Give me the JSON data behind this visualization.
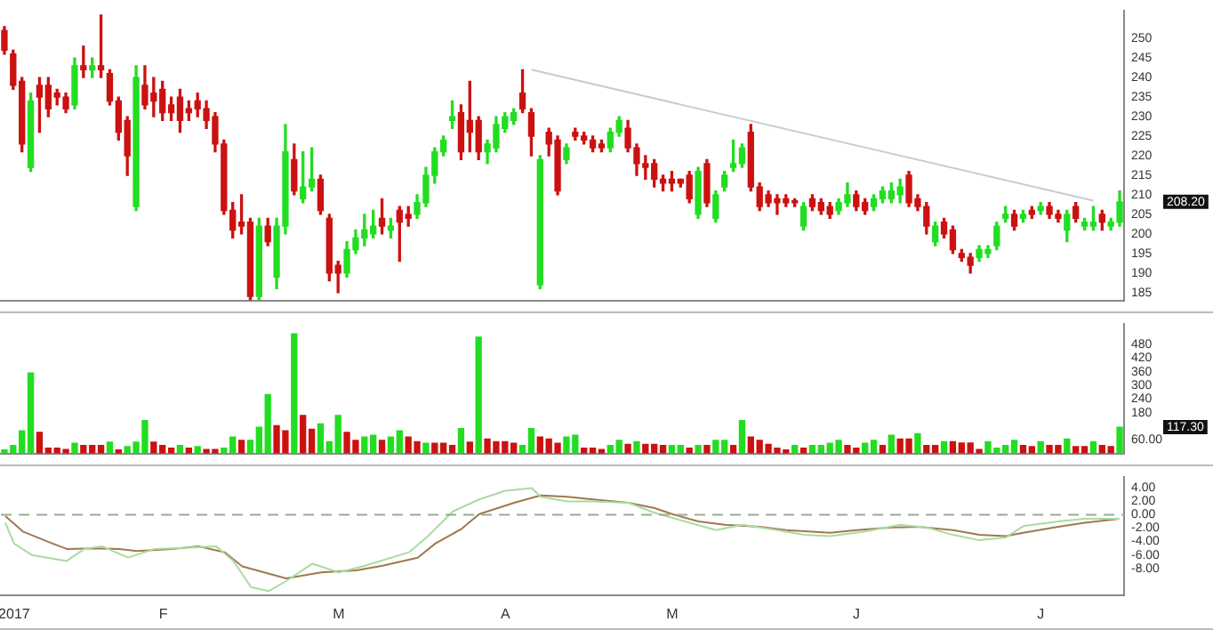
{
  "chart_data": [
    {
      "type": "candlestick",
      "categories": [
        null,
        null,
        null,
        null,
        null,
        null,
        null,
        null,
        null,
        null,
        null,
        null,
        null,
        null,
        null,
        null,
        null,
        null,
        null,
        null,
        null,
        null,
        null,
        null,
        null,
        null,
        null,
        null,
        null,
        null,
        null,
        null,
        null,
        null,
        null,
        null,
        null,
        null,
        null,
        null,
        null,
        null,
        null,
        null,
        null,
        null,
        null,
        null,
        null,
        null,
        null,
        null,
        null,
        null,
        null,
        null,
        null,
        null,
        null,
        null,
        null,
        null,
        null,
        null,
        null,
        null,
        null,
        null,
        null,
        null,
        null,
        null,
        null,
        null,
        null,
        null,
        null,
        null,
        null,
        null,
        null,
        null,
        null,
        null,
        null,
        null,
        null,
        null,
        null,
        null,
        null,
        null,
        null,
        null,
        null,
        null,
        null,
        null,
        null,
        null,
        null,
        null,
        null,
        null,
        null,
        null,
        null,
        null,
        null,
        null,
        null,
        null,
        null,
        null,
        null,
        null,
        null,
        null,
        null,
        null,
        null,
        null,
        null,
        null,
        null,
        null,
        null,
        null
      ],
      "ohlc": [
        [
          252,
          253,
          246,
          247
        ],
        [
          246,
          247,
          237,
          238
        ],
        [
          239,
          240,
          221,
          223
        ],
        [
          217,
          236,
          216,
          234
        ],
        [
          238,
          240,
          226,
          235
        ],
        [
          238,
          240,
          230,
          232
        ],
        [
          236,
          237,
          233,
          235
        ],
        [
          235,
          236,
          231,
          232
        ],
        [
          233,
          245,
          232,
          243
        ],
        [
          243,
          248,
          240,
          242
        ],
        [
          242,
          245,
          240,
          243
        ],
        [
          243,
          256,
          240,
          242
        ],
        [
          241,
          242,
          233,
          234
        ],
        [
          234,
          235,
          224,
          226
        ],
        [
          229,
          230,
          215,
          220
        ],
        [
          207,
          243,
          206,
          240
        ],
        [
          238,
          243,
          232,
          233
        ],
        [
          236,
          240,
          230,
          234
        ],
        [
          237,
          239,
          229,
          231
        ],
        [
          233,
          235,
          229,
          231
        ],
        [
          235,
          237,
          226,
          229
        ],
        [
          232,
          234,
          229,
          231
        ],
        [
          234,
          236,
          230,
          232
        ],
        [
          232,
          234,
          227,
          229
        ],
        [
          230,
          231,
          221,
          223
        ],
        [
          223,
          224,
          205,
          206
        ],
        [
          206,
          208,
          199,
          201
        ],
        [
          203,
          210,
          200,
          202
        ],
        [
          203,
          204,
          182,
          184
        ],
        [
          184,
          204,
          183,
          202
        ],
        [
          202,
          204,
          197,
          198
        ],
        [
          189,
          204,
          186,
          202
        ],
        [
          202,
          228,
          200,
          221
        ],
        [
          219,
          223,
          210,
          211
        ],
        [
          209,
          221,
          208,
          212
        ],
        [
          212,
          222,
          211,
          214
        ],
        [
          214,
          215,
          205,
          206
        ],
        [
          204,
          205,
          188,
          190
        ],
        [
          192,
          193,
          185,
          190
        ],
        [
          190,
          198,
          189,
          196
        ],
        [
          196,
          201,
          195,
          199
        ],
        [
          199,
          205,
          197,
          201
        ],
        [
          200,
          206,
          199,
          202
        ],
        [
          204,
          209,
          200,
          202
        ],
        [
          201,
          204,
          199,
          202
        ],
        [
          206,
          207,
          193,
          203
        ],
        [
          205,
          207,
          202,
          204
        ],
        [
          205,
          210,
          204,
          208
        ],
        [
          208,
          217,
          207,
          215
        ],
        [
          215,
          222,
          213,
          221
        ],
        [
          221,
          225,
          220,
          224
        ],
        [
          229,
          234,
          227,
          230
        ],
        [
          231,
          233,
          219,
          221
        ],
        [
          229,
          239,
          221,
          226
        ],
        [
          229,
          230,
          219,
          221
        ],
        [
          221,
          224,
          218,
          223
        ],
        [
          222,
          230,
          221,
          228
        ],
        [
          227,
          231,
          226,
          230
        ],
        [
          229,
          232,
          228,
          231
        ],
        [
          236,
          242,
          231,
          232
        ],
        [
          231,
          232,
          220,
          225
        ],
        [
          187,
          220,
          186,
          219
        ],
        [
          226,
          227,
          220,
          223
        ],
        [
          224,
          225,
          210,
          211
        ],
        [
          219,
          223,
          218,
          222
        ],
        [
          226,
          227,
          224,
          225
        ],
        [
          225,
          226,
          223,
          224
        ],
        [
          224,
          225,
          221,
          222
        ],
        [
          223,
          224,
          221,
          222
        ],
        [
          222,
          227,
          221,
          226
        ],
        [
          226,
          230,
          225,
          229
        ],
        [
          227,
          229,
          221,
          222
        ],
        [
          222,
          223,
          215,
          218
        ],
        [
          218,
          220,
          214,
          217
        ],
        [
          218,
          219,
          212,
          214
        ],
        [
          214,
          215,
          211,
          213
        ],
        [
          214,
          216,
          211,
          213
        ],
        [
          214,
          214,
          212,
          213
        ],
        [
          215,
          216,
          208,
          209
        ],
        [
          205,
          217,
          204,
          216
        ],
        [
          218,
          219,
          207,
          208
        ],
        [
          204,
          211,
          203,
          210
        ],
        [
          212,
          216,
          211,
          215
        ],
        [
          217,
          224,
          216,
          218
        ],
        [
          218,
          223,
          217,
          222
        ],
        [
          226,
          228,
          211,
          212
        ],
        [
          212,
          213,
          206,
          207
        ],
        [
          210,
          211,
          207,
          208
        ],
        [
          209,
          210,
          205,
          208
        ],
        [
          209,
          210,
          207,
          208
        ],
        [
          208.5,
          209,
          207,
          208
        ],
        [
          202,
          208,
          201,
          207
        ],
        [
          209,
          210,
          206,
          207
        ],
        [
          208,
          209,
          205,
          206
        ],
        [
          207,
          208,
          204,
          205
        ],
        [
          206,
          209,
          205,
          208
        ],
        [
          208,
          213,
          207,
          210
        ],
        [
          210,
          211,
          206,
          207
        ],
        [
          208,
          209,
          205,
          206
        ],
        [
          207,
          210,
          206,
          209
        ],
        [
          209,
          212,
          208,
          211
        ],
        [
          209,
          213,
          208,
          211
        ],
        [
          210,
          214,
          208,
          212
        ],
        [
          215,
          216,
          207,
          208
        ],
        [
          209,
          210,
          206,
          207
        ],
        [
          207,
          208,
          200,
          202
        ],
        [
          198,
          203,
          197,
          202
        ],
        [
          203,
          204,
          199,
          200
        ],
        [
          201,
          202,
          195,
          196
        ],
        [
          195,
          196,
          193,
          194
        ],
        [
          194,
          195,
          190,
          192
        ],
        [
          194,
          197,
          193,
          196
        ],
        [
          195,
          197,
          194,
          196
        ],
        [
          197,
          203,
          196,
          202
        ],
        [
          204,
          207,
          203,
          205
        ],
        [
          205,
          206,
          201,
          202
        ],
        [
          204,
          206,
          203,
          205
        ],
        [
          206,
          207,
          204,
          205
        ],
        [
          206,
          208,
          205,
          207
        ],
        [
          207,
          208,
          204,
          205
        ],
        [
          205,
          206,
          203,
          204
        ],
        [
          201,
          206,
          198,
          205
        ],
        [
          207,
          208,
          203,
          204
        ],
        [
          202,
          204,
          201,
          203
        ],
        [
          202,
          207,
          201,
          203
        ],
        [
          205,
          206,
          201,
          203
        ],
        [
          202,
          204,
          201,
          203
        ],
        [
          203,
          211,
          202,
          208.2
        ]
      ],
      "colors": [
        "#cc1111",
        "#cc1111",
        "#cc1111",
        "#22dd22",
        "#cc1111",
        "#cc1111",
        "#cc1111",
        "#cc1111",
        "#22dd22",
        "#cc1111",
        "#22dd22",
        "#cc1111",
        "#cc1111",
        "#cc1111",
        "#cc1111",
        "#22dd22",
        "#cc1111",
        "#cc1111",
        "#cc1111",
        "#cc1111",
        "#cc1111",
        "#cc1111",
        "#cc1111",
        "#cc1111",
        "#cc1111",
        "#cc1111",
        "#cc1111",
        "#cc1111",
        "#cc1111",
        "#22dd22",
        "#cc1111",
        "#22dd22",
        "#22dd22",
        "#cc1111",
        "#22dd22",
        "#22dd22",
        "#cc1111",
        "#cc1111",
        "#cc1111",
        "#22dd22",
        "#22dd22",
        "#22dd22",
        "#22dd22",
        "#cc1111",
        "#22dd22",
        "#cc1111",
        "#cc1111",
        "#22dd22",
        "#22dd22",
        "#22dd22",
        "#22dd22",
        "#22dd22",
        "#cc1111",
        "#cc1111",
        "#cc1111",
        "#22dd22",
        "#22dd22",
        "#22dd22",
        "#22dd22",
        "#cc1111",
        "#cc1111",
        "#22dd22",
        "#cc1111",
        "#cc1111",
        "#22dd22",
        "#cc1111",
        "#cc1111",
        "#cc1111",
        "#cc1111",
        "#22dd22",
        "#22dd22",
        "#cc1111",
        "#cc1111",
        "#cc1111",
        "#cc1111",
        "#cc1111",
        "#cc1111",
        "#cc1111",
        "#cc1111",
        "#22dd22",
        "#cc1111",
        "#22dd22",
        "#22dd22",
        "#22dd22",
        "#22dd22",
        "#cc1111",
        "#cc1111",
        "#cc1111",
        "#cc1111",
        "#cc1111",
        "#cc1111",
        "#22dd22",
        "#cc1111",
        "#cc1111",
        "#cc1111",
        "#22dd22",
        "#22dd22",
        "#cc1111",
        "#cc1111",
        "#22dd22",
        "#22dd22",
        "#22dd22",
        "#22dd22",
        "#cc1111",
        "#cc1111",
        "#cc1111",
        "#22dd22",
        "#cc1111",
        "#cc1111",
        "#cc1111",
        "#cc1111",
        "#22dd22",
        "#22dd22",
        "#22dd22",
        "#22dd22",
        "#cc1111",
        "#22dd22",
        "#cc1111",
        "#22dd22",
        "#cc1111",
        "#cc1111",
        "#22dd22",
        "#cc1111",
        "#22dd22",
        "#22dd22",
        "#cc1111",
        "#22dd22",
        "#22dd22"
      ],
      "series": [
        {
          "type": "line",
          "color": "#cccccc",
          "values": [
            null,
            null,
            null,
            null,
            null,
            null,
            null,
            null,
            null,
            null,
            null,
            null,
            null,
            null,
            null,
            null,
            null,
            null,
            null,
            null,
            null,
            null,
            null,
            null,
            null,
            null,
            null,
            null,
            null,
            null,
            null,
            null,
            null,
            null,
            null,
            null,
            null,
            null,
            null,
            null,
            null,
            null,
            null,
            null,
            null,
            null,
            null,
            null,
            null,
            null,
            null,
            null,
            null,
            null,
            null,
            null,
            null,
            null,
            null,
            null,
            242,
            null,
            null,
            null,
            null,
            null,
            null,
            null,
            null,
            null,
            null,
            null,
            null,
            null,
            null,
            null,
            null,
            null,
            null,
            null,
            null,
            null,
            null,
            null,
            null,
            null,
            null,
            null,
            null,
            null,
            null,
            null,
            null,
            null,
            null,
            null,
            null,
            null,
            null,
            null,
            null,
            null,
            null,
            null,
            null,
            null,
            null,
            null,
            null,
            null,
            null,
            null,
            null,
            null,
            null,
            null,
            null,
            null,
            null,
            null,
            null,
            null,
            null,
            null,
            208.5,
            null,
            null,
            null
          ]
        }
      ],
      "annotations": [
        "208.20"
      ],
      "ylim": [
        183,
        257
      ],
      "yticks": [
        185,
        190,
        195,
        200,
        205,
        210,
        215,
        220,
        225,
        230,
        235,
        240,
        245,
        250
      ],
      "tick_labels": "y",
      "grid": false,
      "legend": false
    },
    {
      "type": "bar",
      "categories": [
        null,
        null,
        null,
        null,
        null,
        null,
        null,
        null,
        null,
        null,
        null,
        null,
        null,
        null,
        null,
        null,
        null,
        null,
        null,
        null,
        null,
        null,
        null,
        null,
        null,
        null,
        null,
        null,
        null,
        null,
        null,
        null,
        null,
        null,
        null,
        null,
        null,
        null,
        null,
        null,
        null,
        null,
        null,
        null,
        null,
        null,
        null,
        null,
        null,
        null,
        null,
        null,
        null,
        null,
        null,
        null,
        null,
        null,
        null,
        null,
        null,
        null,
        null,
        null,
        null,
        null,
        null,
        null,
        null,
        null,
        null,
        null,
        null,
        null,
        null,
        null,
        null,
        null,
        null,
        null,
        null,
        null,
        null,
        null,
        null,
        null,
        null,
        null,
        null,
        null,
        null,
        null,
        null,
        null,
        null,
        null,
        null,
        null,
        null,
        null,
        null,
        null,
        null,
        null,
        null,
        null,
        null,
        null,
        null,
        null,
        null,
        null,
        null,
        null,
        null,
        null,
        null,
        null,
        null,
        null,
        null,
        null,
        null,
        null,
        null,
        null,
        null,
        null
      ],
      "values": [
        15,
        35,
        100,
        355,
        93,
        23,
        23,
        17,
        45,
        35,
        35,
        35,
        50,
        15,
        30,
        50,
        145,
        50,
        35,
        23,
        35,
        23,
        30,
        17,
        17,
        23,
        72,
        58,
        58,
        116,
        260,
        122,
        100,
        528,
        168,
        107,
        130,
        52,
        168,
        93,
        58,
        72,
        80,
        58,
        72,
        100,
        72,
        52,
        45,
        45,
        45,
        35,
        110,
        50,
        513,
        64,
        52,
        52,
        45,
        35,
        110,
        72,
        64,
        45,
        72,
        80,
        23,
        23,
        17,
        35,
        58,
        40,
        52,
        40,
        40,
        35,
        35,
        35,
        23,
        35,
        35,
        58,
        58,
        35,
        145,
        72,
        58,
        40,
        23,
        15,
        35,
        23,
        35,
        35,
        45,
        58,
        35,
        23,
        45,
        58,
        35,
        80,
        64,
        64,
        87,
        35,
        35,
        52,
        52,
        46,
        46,
        17,
        52,
        23,
        35,
        58,
        35,
        30,
        52,
        35,
        35,
        64,
        30,
        30,
        52,
        35,
        30,
        116
      ],
      "colors": [
        "#22dd22",
        "#22dd22",
        "#22dd22",
        "#22dd22",
        "#cc1111",
        "#cc1111",
        "#cc1111",
        "#cc1111",
        "#22dd22",
        "#cc1111",
        "#cc1111",
        "#cc1111",
        "#22dd22",
        "#cc1111",
        "#22dd22",
        "#22dd22",
        "#22dd22",
        "#cc1111",
        "#cc1111",
        "#cc1111",
        "#22dd22",
        "#cc1111",
        "#22dd22",
        "#cc1111",
        "#cc1111",
        "#22dd22",
        "#22dd22",
        "#cc1111",
        "#22dd22",
        "#22dd22",
        "#22dd22",
        "#cc1111",
        "#cc1111",
        "#22dd22",
        "#cc1111",
        "#cc1111",
        "#22dd22",
        "#22dd22",
        "#22dd22",
        "#cc1111",
        "#cc1111",
        "#22dd22",
        "#22dd22",
        "#cc1111",
        "#22dd22",
        "#22dd22",
        "#cc1111",
        "#cc1111",
        "#22dd22",
        "#cc1111",
        "#cc1111",
        "#cc1111",
        "#22dd22",
        "#cc1111",
        "#22dd22",
        "#cc1111",
        "#cc1111",
        "#cc1111",
        "#cc1111",
        "#22dd22",
        "#22dd22",
        "#cc1111",
        "#cc1111",
        "#cc1111",
        "#22dd22",
        "#22dd22",
        "#cc1111",
        "#cc1111",
        "#cc1111",
        "#22dd22",
        "#22dd22",
        "#cc1111",
        "#22dd22",
        "#cc1111",
        "#cc1111",
        "#cc1111",
        "#22dd22",
        "#22dd22",
        "#cc1111",
        "#22dd22",
        "#cc1111",
        "#22dd22",
        "#22dd22",
        "#cc1111",
        "#22dd22",
        "#cc1111",
        "#cc1111",
        "#cc1111",
        "#cc1111",
        "#cc1111",
        "#22dd22",
        "#cc1111",
        "#22dd22",
        "#22dd22",
        "#22dd22",
        "#22dd22",
        "#cc1111",
        "#cc1111",
        "#22dd22",
        "#22dd22",
        "#cc1111",
        "#22dd22",
        "#cc1111",
        "#cc1111",
        "#22dd22",
        "#cc1111",
        "#cc1111",
        "#22dd22",
        "#cc1111",
        "#cc1111",
        "#cc1111",
        "#cc1111",
        "#22dd22",
        "#22dd22",
        "#22dd22",
        "#22dd22",
        "#cc1111",
        "#cc1111",
        "#22dd22",
        "#cc1111",
        "#cc1111",
        "#22dd22",
        "#cc1111",
        "#cc1111",
        "#22dd22",
        "#cc1111",
        "#cc1111",
        "#22dd22"
      ],
      "annotations": [
        "117.30"
      ],
      "ylim": [
        0,
        570
      ],
      "yticks": [
        {
          "value": 60,
          "label": "60.00"
        },
        180,
        240,
        300,
        360,
        420,
        480
      ],
      "tick_labels": "y",
      "grid": false,
      "legend": false
    },
    {
      "type": "line",
      "categories": [
        null,
        "2017",
        null,
        null,
        null,
        null,
        null,
        null,
        null,
        null,
        null,
        null,
        null,
        null,
        null,
        null,
        null,
        null,
        "F",
        null,
        null,
        null,
        null,
        null,
        null,
        null,
        null,
        null,
        null,
        null,
        null,
        null,
        null,
        null,
        null,
        null,
        null,
        null,
        "M",
        null,
        null,
        null,
        null,
        null,
        null,
        null,
        null,
        null,
        null,
        null,
        null,
        null,
        null,
        null,
        null,
        null,
        null,
        "A",
        null,
        null,
        null,
        null,
        null,
        null,
        null,
        null,
        null,
        null,
        null,
        null,
        null,
        null,
        null,
        null,
        null,
        null,
        "M",
        null,
        null,
        null,
        null,
        null,
        null,
        null,
        null,
        null,
        null,
        null,
        null,
        null,
        null,
        null,
        null,
        null,
        null,
        null,
        null,
        "J",
        null,
        null,
        null,
        null,
        null,
        null,
        null,
        null,
        null,
        null,
        null,
        null,
        null,
        null,
        null,
        null,
        null,
        null,
        null,
        null,
        "J",
        null,
        null,
        null,
        null,
        null,
        null,
        null,
        null,
        null
      ],
      "series": [
        {
          "color": "#a8dca0",
          "values": [
            -1.2,
            -4.3,
            null,
            -6,
            null,
            null,
            null,
            -6.9,
            null,
            -5.1,
            null,
            -4.7,
            null,
            null,
            -6.4,
            null,
            null,
            -5.1,
            null,
            null,
            null,
            -4.9,
            null,
            null,
            -4.7,
            null,
            -6.9,
            null,
            -10.8,
            null,
            -11.4,
            null,
            -9.9,
            null,
            null,
            -7.3,
            null,
            null,
            -8.6,
            null,
            null,
            -7.6,
            null,
            null,
            null,
            null,
            -5.6,
            null,
            -3.4,
            null,
            null,
            0.5,
            null,
            null,
            2.3,
            null,
            null,
            3.6,
            null,
            null,
            4,
            2.7,
            null,
            null,
            2,
            null,
            null,
            2,
            null,
            null,
            null,
            1.8,
            null,
            null,
            0.3,
            null,
            null,
            null,
            -1.2,
            null,
            null,
            -2.3,
            null,
            null,
            -1.5,
            null,
            null,
            null,
            -2.3,
            null,
            null,
            -3,
            null,
            null,
            -3.2,
            null,
            null,
            null,
            -2.5,
            null,
            null,
            null,
            -1.5,
            null,
            null,
            -1.9,
            null,
            null,
            -3,
            null,
            null,
            -3.8,
            null,
            null,
            -3.4,
            null,
            -1.7,
            null,
            null,
            null,
            -1,
            null,
            null,
            -0.6,
            null,
            null,
            null,
            -0.6
          ]
        },
        {
          "color": "#a07850",
          "values": [
            -0.2,
            null,
            -2.5,
            null,
            null,
            -4.1,
            null,
            -5.1,
            null,
            null,
            -5,
            null,
            null,
            -5.1,
            null,
            -5.4,
            null,
            null,
            null,
            -5.1,
            null,
            null,
            -4.7,
            null,
            null,
            -5.6,
            null,
            -7.7,
            null,
            null,
            null,
            null,
            -9.5,
            null,
            null,
            null,
            -8.6,
            null,
            null,
            null,
            -8.3,
            null,
            null,
            -7.6,
            null,
            null,
            null,
            -6.4,
            null,
            -4.3,
            null,
            null,
            -2.1,
            null,
            0.1,
            null,
            null,
            null,
            1.8,
            null,
            null,
            2.9,
            null,
            null,
            2.7,
            null,
            null,
            2.3,
            null,
            null,
            null,
            1.8,
            null,
            null,
            1,
            null,
            0.1,
            null,
            null,
            -1,
            null,
            null,
            -1.5,
            null,
            null,
            null,
            -1.8,
            null,
            null,
            -2.3,
            null,
            null,
            null,
            null,
            -2.7,
            null,
            null,
            -2.3,
            null,
            null,
            null,
            -1.9,
            null,
            null,
            -1.8,
            null,
            null,
            null,
            -2.3,
            null,
            null,
            -3,
            null,
            null,
            -3.2,
            null,
            -2.7,
            null,
            null,
            null,
            -1.8,
            null,
            null,
            -1.2,
            null,
            null,
            null,
            -0.6
          ]
        }
      ],
      "ref_lines": [
        {
          "axis": "y",
          "value": 0,
          "color": "#99aa99",
          "line_style": "dashed"
        }
      ],
      "ylim": [
        -12,
        5.6
      ],
      "yticks": [
        {
          "value": -8,
          "label": "-8.00"
        },
        {
          "value": -6,
          "label": "-6.00"
        },
        {
          "value": -4,
          "label": "-4.00"
        },
        {
          "value": -2,
          "label": "-2.00"
        },
        {
          "value": 0,
          "label": "0.00"
        },
        {
          "value": 2,
          "label": "2.00"
        },
        {
          "value": 4,
          "label": "4.00"
        }
      ],
      "marker": "none",
      "line_style": "solid",
      "grid": false,
      "legend": false
    }
  ]
}
